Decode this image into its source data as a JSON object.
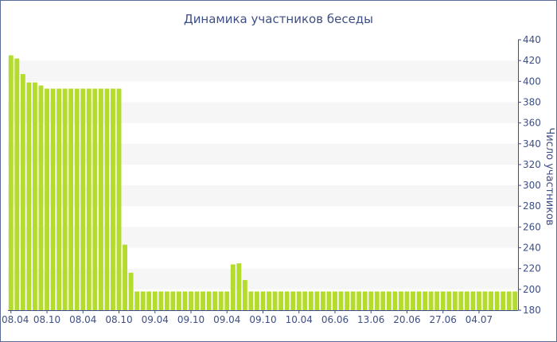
{
  "colors": {
    "bar": "#b4dc2c",
    "bar_edge": "#9cc21c",
    "band": "#f6f6f6",
    "axis": "#3e4f85",
    "text": "#3e4f85",
    "border": "#5b6b99"
  },
  "chart_data": {
    "type": "bar",
    "title": "Динамика участников беседы",
    "xlabel": "",
    "ylabel": "Число участников",
    "ylim": [
      180,
      440
    ],
    "yticks": [
      180,
      200,
      220,
      240,
      260,
      280,
      300,
      320,
      340,
      360,
      380,
      400,
      420,
      440
    ],
    "y_axis_side": "right",
    "grid": "alternating horizontal bands",
    "legend": "none",
    "x_tick_labels": [
      {
        "index": 0,
        "label": "08.04"
      },
      {
        "index": 6,
        "label": "08.10"
      },
      {
        "index": 12,
        "label": "08.04"
      },
      {
        "index": 18,
        "label": "08.10"
      },
      {
        "index": 24,
        "label": "09.04"
      },
      {
        "index": 30,
        "label": "09.10"
      },
      {
        "index": 36,
        "label": "09.04"
      },
      {
        "index": 42,
        "label": "09.10"
      },
      {
        "index": 48,
        "label": "10.04"
      },
      {
        "index": 54,
        "label": "06.06"
      },
      {
        "index": 60,
        "label": "13.06"
      },
      {
        "index": 66,
        "label": "20.06"
      },
      {
        "index": 72,
        "label": "27.06"
      },
      {
        "index": 78,
        "label": "04.07"
      }
    ],
    "values": [
      425,
      422,
      407,
      399,
      399,
      396,
      393,
      393,
      393,
      393,
      393,
      393,
      393,
      393,
      393,
      393,
      393,
      393,
      393,
      243,
      216,
      198,
      198,
      198,
      198,
      198,
      198,
      198,
      198,
      198,
      198,
      198,
      198,
      198,
      198,
      198,
      198,
      224,
      225,
      209,
      198,
      198,
      198,
      198,
      198,
      198,
      198,
      198,
      198,
      198,
      198,
      198,
      198,
      198,
      198,
      198,
      198,
      198,
      198,
      198,
      198,
      198,
      198,
      198,
      198,
      198,
      198,
      198,
      198,
      198,
      198,
      198,
      198,
      198,
      198,
      198,
      198,
      198,
      198,
      198,
      198,
      198,
      198,
      198,
      198
    ]
  }
}
